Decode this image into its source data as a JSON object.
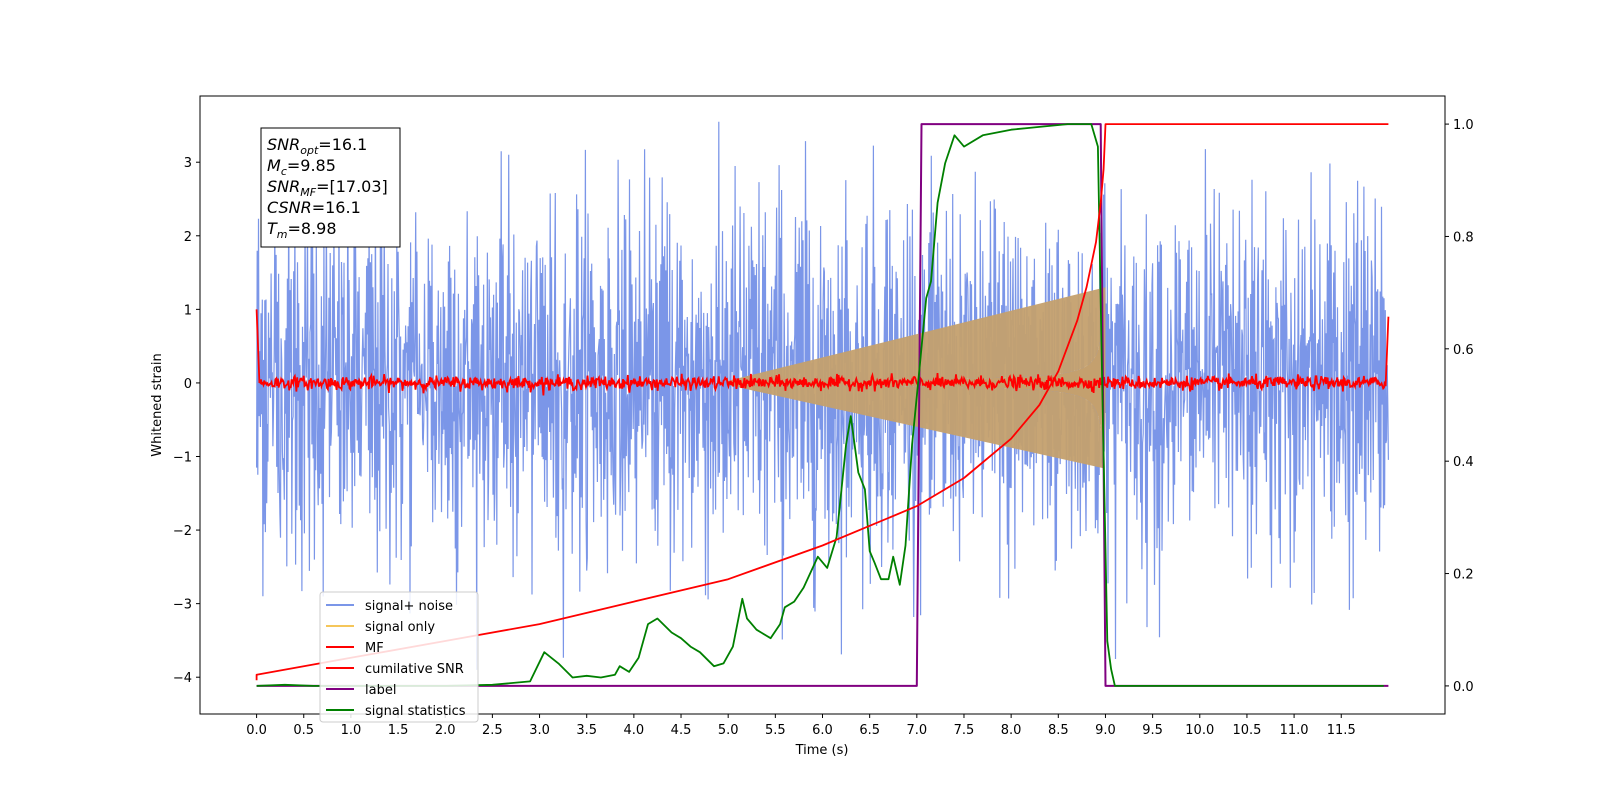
{
  "chart_data": {
    "type": "line",
    "xlabel": "Time (s)",
    "ylabel": "Whitened strain",
    "xlim": [
      -0.6,
      12.6
    ],
    "ylim_left": [
      -4.5,
      3.9
    ],
    "ylim_right": [
      -0.05,
      1.05
    ],
    "x_ticks": [
      "0.0",
      "0.5",
      "1.0",
      "1.5",
      "2.0",
      "2.5",
      "3.0",
      "3.5",
      "4.0",
      "4.5",
      "5.0",
      "5.5",
      "6.0",
      "6.5",
      "7.0",
      "7.5",
      "8.0",
      "8.5",
      "9.0",
      "9.5",
      "10.0",
      "10.5",
      "11.0",
      "11.5"
    ],
    "y_ticks_left": [
      "−4",
      "−3",
      "−2",
      "−1",
      "0",
      "1",
      "2",
      "3"
    ],
    "y_ticks_right": [
      "0.0",
      "0.2",
      "0.4",
      "0.6",
      "0.8",
      "1.0"
    ],
    "annotation": [
      {
        "name": "SNR",
        "sub": "opt",
        "value": "=16.1"
      },
      {
        "name": "M",
        "sub": "c",
        "value": "=9.85"
      },
      {
        "name": "SNR",
        "sub": "MF",
        "value": "=[17.03]"
      },
      {
        "name": "CSNR",
        "sub": "",
        "value": "=16.1"
      },
      {
        "name": "T",
        "sub": "m",
        "value": "=8.98"
      }
    ],
    "legend": {
      "placement": "lower-left",
      "entries": [
        {
          "label": "signal+ noise",
          "color": "#7b96e8"
        },
        {
          "label": "signal only",
          "color": "#f5c65a"
        },
        {
          "label": "MF",
          "color": "#ff0000"
        },
        {
          "label": "cumilative SNR",
          "color": "#ff0000"
        },
        {
          "label": "label",
          "color": "#800080"
        },
        {
          "label": "signal statistics",
          "color": "#008000"
        }
      ]
    },
    "series": [
      {
        "name": "signal+ noise",
        "axis": "left",
        "color": "#7b96e8",
        "description_values": {
          "t_start": 0.0,
          "t_end": 12.0,
          "mean": 0.0,
          "envelope": [
            -3.9,
            3.6
          ]
        }
      },
      {
        "name": "signal only",
        "axis": "left",
        "color": "#c4a06e",
        "chirp": {
          "t_start": 5.0,
          "t_merge": 8.98,
          "peak_amplitude": 1.3
        }
      },
      {
        "name": "MF",
        "axis": "left",
        "color": "#ff0000",
        "x": [
          0.0,
          0.03,
          11.97,
          12.0
        ],
        "y": [
          1.0,
          0.0,
          0.0,
          0.9
        ]
      },
      {
        "name": "cumilative SNR",
        "axis": "right",
        "color": "#ff0000",
        "x": [
          0.0,
          0.0,
          1.0,
          2.0,
          3.0,
          4.0,
          5.0,
          6.0,
          7.0,
          7.5,
          8.0,
          8.3,
          8.5,
          8.7,
          8.8,
          8.9,
          8.95,
          8.98,
          9.0,
          12.0
        ],
        "y": [
          0.01,
          0.02,
          0.05,
          0.08,
          0.11,
          0.15,
          0.19,
          0.25,
          0.32,
          0.37,
          0.44,
          0.5,
          0.56,
          0.65,
          0.71,
          0.79,
          0.86,
          0.92,
          1.0,
          1.0
        ]
      },
      {
        "name": "label",
        "axis": "right",
        "color": "#800080",
        "x": [
          0.0,
          7.0,
          7.05,
          8.95,
          9.0,
          12.0
        ],
        "y": [
          0.0,
          0.0,
          1.0,
          1.0,
          0.0,
          0.0
        ]
      },
      {
        "name": "signal statistics",
        "axis": "right",
        "color": "#008000",
        "x": [
          0.0,
          0.3,
          0.6,
          1.0,
          1.5,
          2.0,
          2.5,
          2.9,
          3.05,
          3.2,
          3.35,
          3.5,
          3.65,
          3.8,
          3.85,
          3.95,
          4.05,
          4.15,
          4.25,
          4.4,
          4.5,
          4.6,
          4.7,
          4.85,
          4.95,
          5.05,
          5.15,
          5.2,
          5.3,
          5.45,
          5.55,
          5.6,
          5.7,
          5.8,
          5.95,
          6.05,
          6.15,
          6.25,
          6.3,
          6.38,
          6.45,
          6.5,
          6.55,
          6.62,
          6.7,
          6.75,
          6.82,
          6.88,
          6.95,
          7.02,
          7.1,
          7.15,
          7.22,
          7.3,
          7.4,
          7.5,
          7.7,
          8.0,
          8.3,
          8.6,
          8.85,
          8.92,
          8.97,
          9.02,
          9.06,
          9.1,
          9.5,
          10.0,
          11.0,
          11.95
        ],
        "y": [
          0.0,
          0.002,
          0.0,
          0.0,
          0.0,
          0.0,
          0.002,
          0.008,
          0.06,
          0.04,
          0.015,
          0.018,
          0.015,
          0.02,
          0.035,
          0.025,
          0.05,
          0.11,
          0.12,
          0.095,
          0.085,
          0.07,
          0.06,
          0.035,
          0.04,
          0.07,
          0.155,
          0.12,
          0.1,
          0.085,
          0.11,
          0.14,
          0.15,
          0.175,
          0.23,
          0.21,
          0.265,
          0.43,
          0.48,
          0.38,
          0.35,
          0.24,
          0.22,
          0.19,
          0.19,
          0.23,
          0.18,
          0.25,
          0.43,
          0.55,
          0.69,
          0.72,
          0.86,
          0.93,
          0.98,
          0.96,
          0.98,
          0.99,
          0.995,
          1.0,
          1.0,
          0.96,
          0.5,
          0.08,
          0.03,
          0.0,
          0.0,
          0.0,
          0.0,
          0.0
        ]
      }
    ]
  }
}
